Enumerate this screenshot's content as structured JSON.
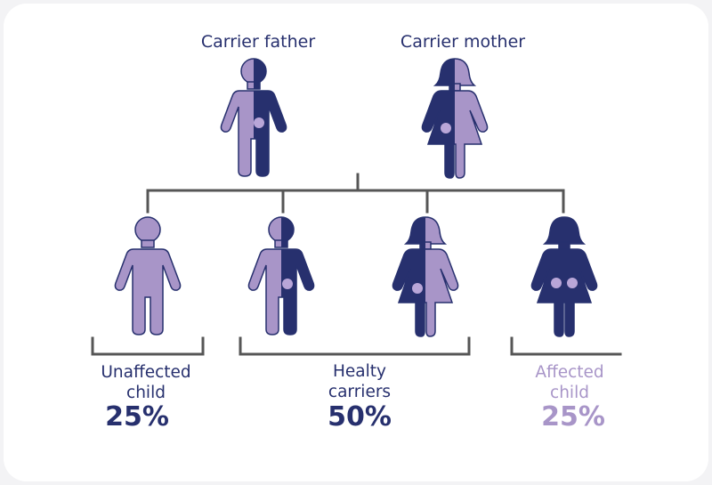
{
  "colors": {
    "dark": "#27306e",
    "light": "#a895c8",
    "dot": "#b9a6d8",
    "line": "#565656"
  },
  "parents": {
    "father_label": "Carrier father",
    "mother_label": "Carrier mother"
  },
  "outcomes": [
    {
      "label_line1": "Unaffected",
      "label_line2": "child",
      "percent": "25%"
    },
    {
      "label_line1": "Healty",
      "label_line2": "carriers",
      "percent": "50%"
    },
    {
      "label_line1": "Affected",
      "label_line2": "child",
      "percent": "25%"
    }
  ]
}
